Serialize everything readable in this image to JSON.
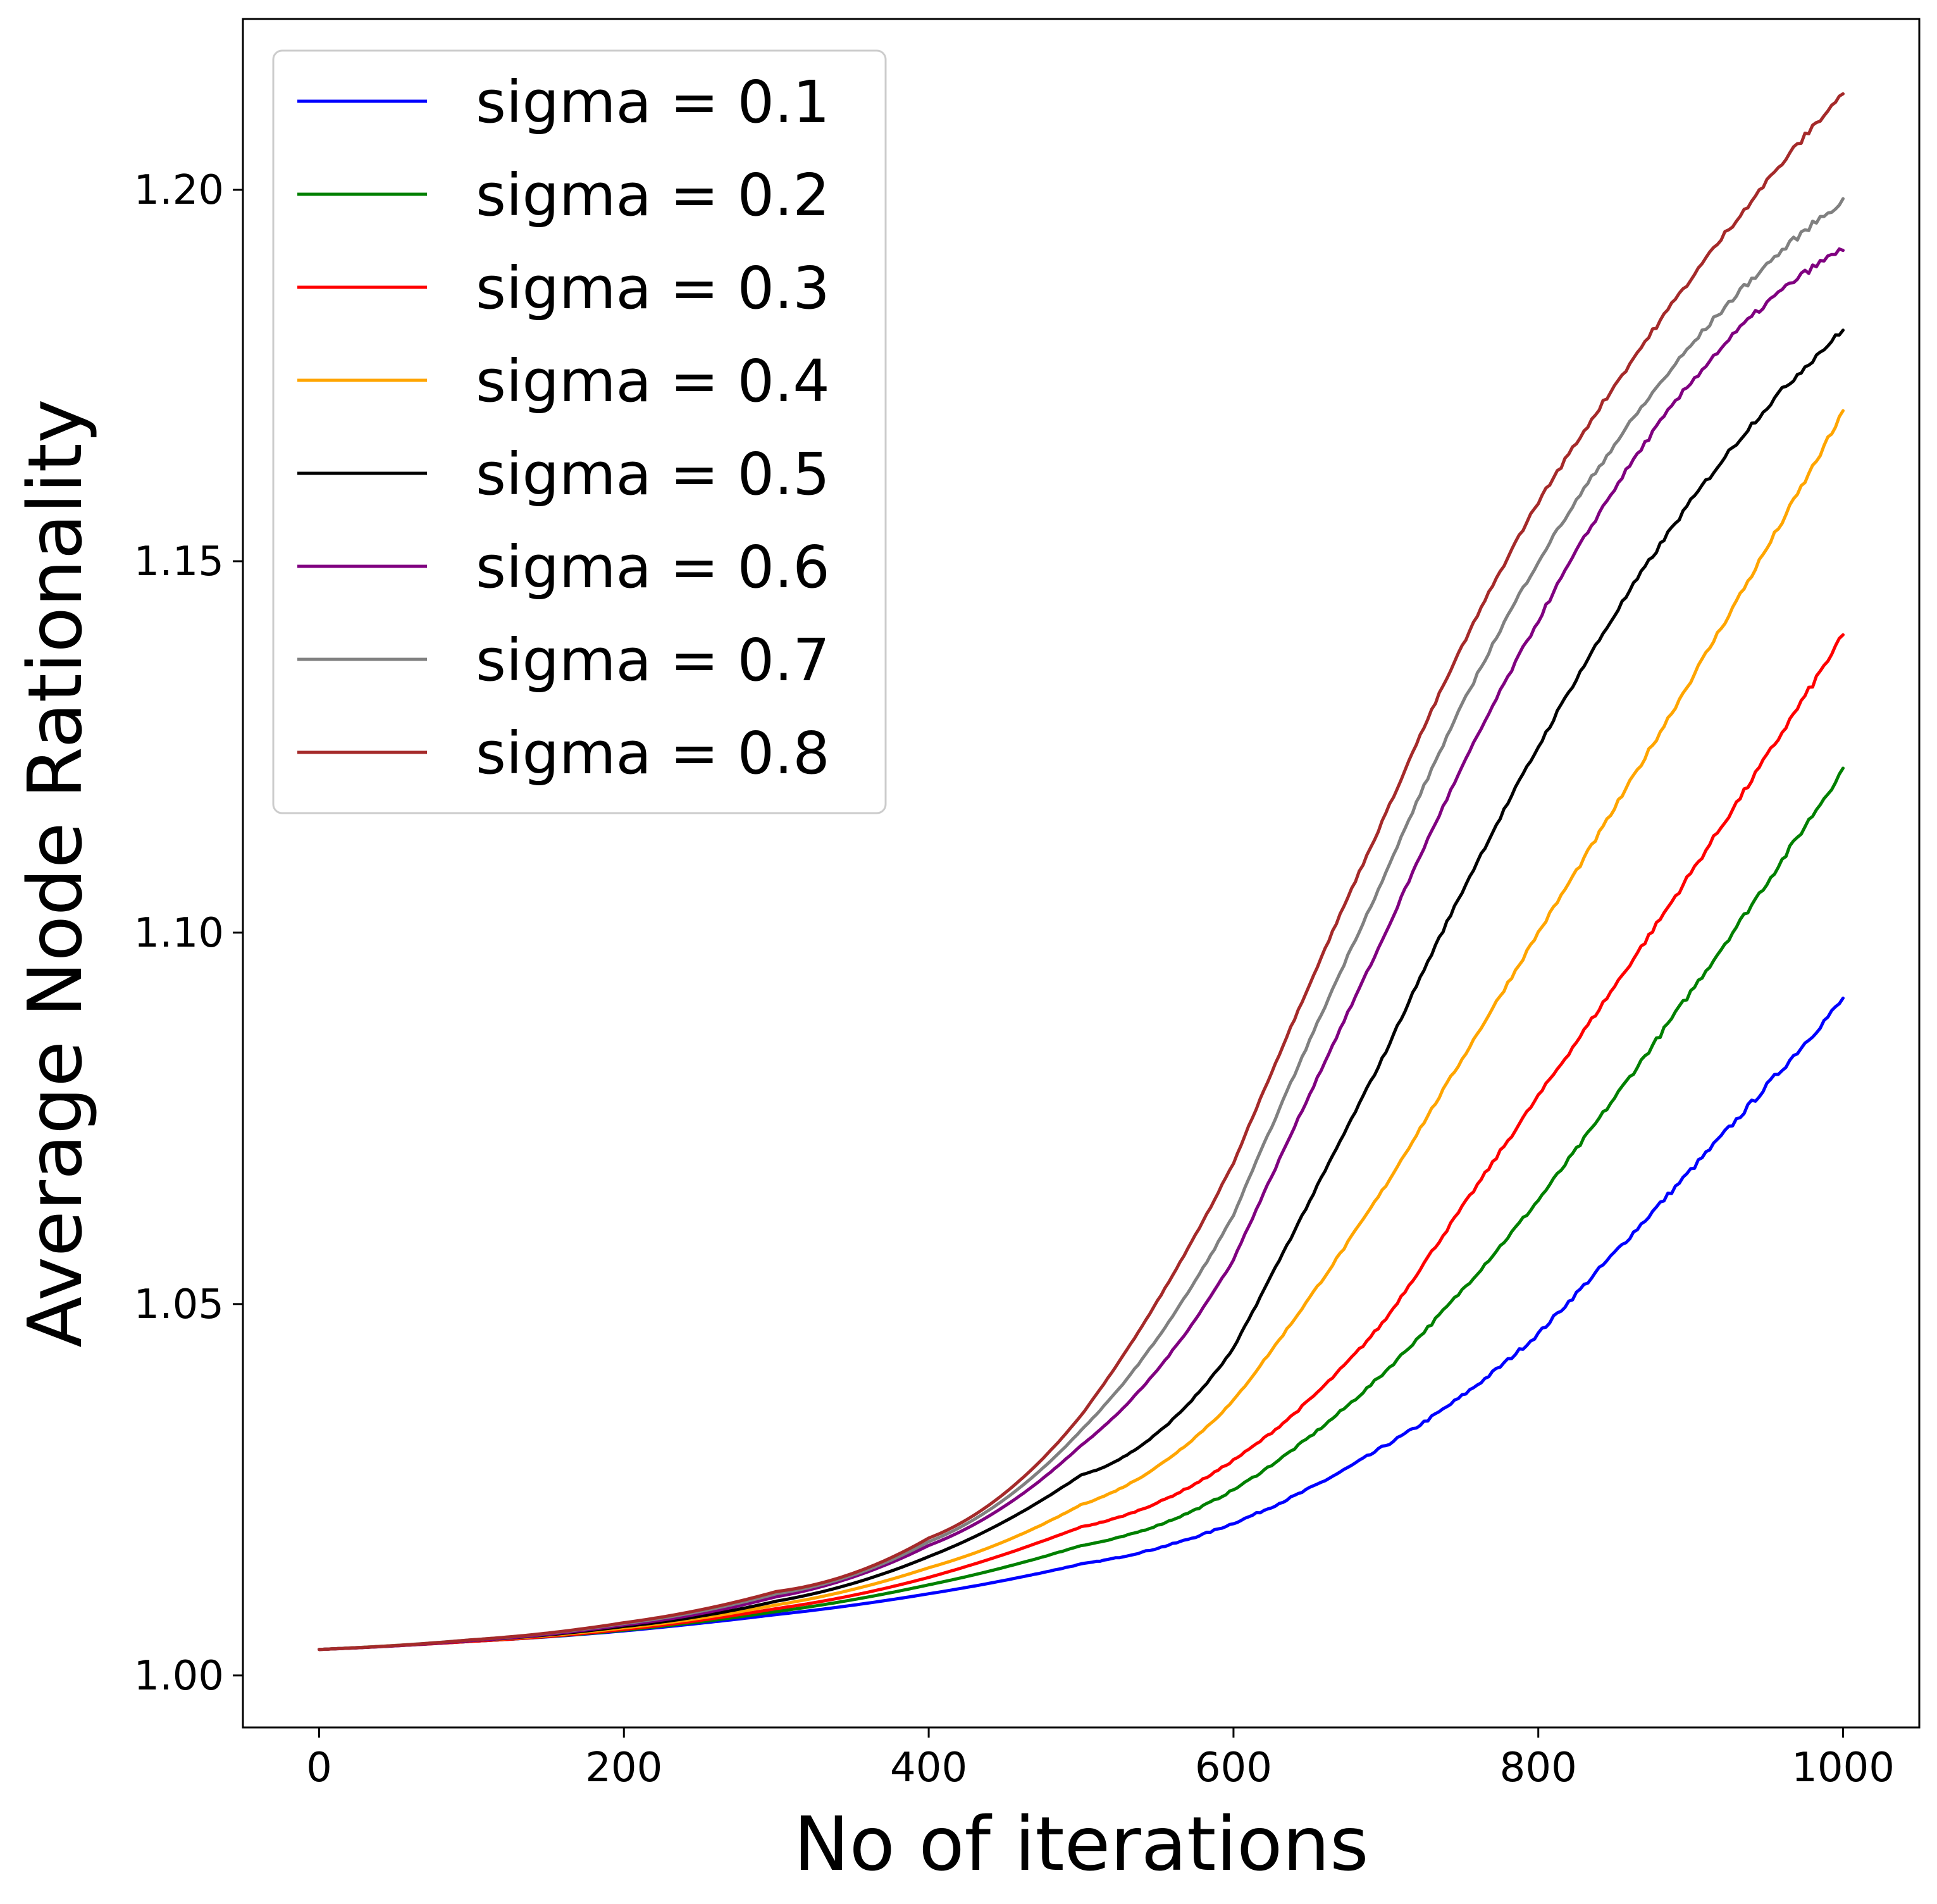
{
  "chart_data": {
    "type": "line",
    "title": "",
    "xlabel": "No of iterations",
    "ylabel": "Average Node Rationality",
    "xlim": [
      -50,
      1050
    ],
    "ylim": [
      0.993,
      1.223
    ],
    "xticks": [
      0,
      200,
      400,
      600,
      800,
      1000
    ],
    "xtick_labels": [
      "0",
      "200",
      "400",
      "600",
      "800",
      "1000"
    ],
    "yticks": [
      1.0,
      1.05,
      1.1,
      1.15,
      1.2
    ],
    "ytick_labels": [
      "1.00",
      "1.05",
      "1.10",
      "1.15",
      "1.20"
    ],
    "grid": false,
    "legend": {
      "placement": "top-left"
    },
    "x": [
      0,
      100,
      200,
      300,
      400,
      500,
      600,
      700,
      800,
      900,
      1000
    ],
    "series": [
      {
        "name": "sigma = 0.1",
        "color": "#0000ff",
        "values": [
          1.0035,
          1.0046,
          1.006,
          1.0082,
          1.011,
          1.015,
          1.0205,
          1.031,
          1.046,
          1.068,
          1.091
        ]
      },
      {
        "name": "sigma = 0.2",
        "color": "#008000",
        "values": [
          1.0035,
          1.0046,
          1.0061,
          1.0086,
          1.0122,
          1.0175,
          1.025,
          1.041,
          1.064,
          1.092,
          1.122
        ]
      },
      {
        "name": "sigma = 0.3",
        "color": "#ff0000",
        "values": [
          1.0035,
          1.0046,
          1.0062,
          1.009,
          1.0132,
          1.02,
          1.029,
          1.048,
          1.078,
          1.108,
          1.14
        ]
      },
      {
        "name": "sigma = 0.4",
        "color": "#ffa500",
        "values": [
          1.0035,
          1.0047,
          1.0064,
          1.0095,
          1.0145,
          1.023,
          1.037,
          1.066,
          1.1,
          1.134,
          1.17
        ]
      },
      {
        "name": "sigma = 0.5",
        "color": "#000000",
        "values": [
          1.0035,
          1.0047,
          1.0066,
          1.01,
          1.016,
          1.027,
          1.044,
          1.084,
          1.125,
          1.158,
          1.181
        ]
      },
      {
        "name": "sigma = 0.6",
        "color": "#800080",
        "values": [
          1.0035,
          1.0047,
          1.0068,
          1.0106,
          1.0175,
          1.031,
          1.056,
          1.1,
          1.142,
          1.174,
          1.192
        ]
      },
      {
        "name": "sigma = 0.7",
        "color": "#808080",
        "values": [
          1.0035,
          1.0048,
          1.007,
          1.011,
          1.018,
          1.033,
          1.062,
          1.108,
          1.15,
          1.179,
          1.1985
        ]
      },
      {
        "name": "sigma = 0.8",
        "color": "#a52a2a",
        "values": [
          1.0035,
          1.0048,
          1.0071,
          1.0113,
          1.0185,
          1.035,
          1.069,
          1.116,
          1.158,
          1.188,
          1.213
        ]
      }
    ]
  }
}
